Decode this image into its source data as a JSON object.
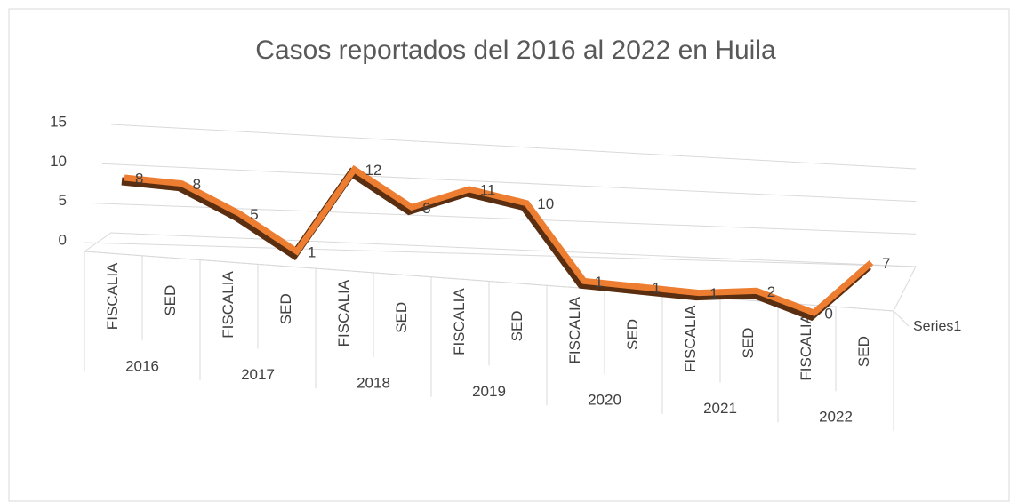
{
  "chart_data": {
    "type": "line3d",
    "title": "Casos reportados del 2016 al 2022 en Huila",
    "categories": [
      "FISCALIA",
      "SED",
      "FISCALIA",
      "SED",
      "FISCALIA",
      "SED",
      "FISCALIA",
      "SED",
      "FISCALIA",
      "SED",
      "FISCALIA",
      "SED",
      "FISCALIA",
      "SED"
    ],
    "groups": [
      "2016",
      "2017",
      "2018",
      "2019",
      "2020",
      "2021",
      "2022"
    ],
    "series": [
      {
        "name": "Series1",
        "color": "#ed7d31",
        "values": [
          8,
          8,
          5,
          1,
          12,
          8,
          11,
          10,
          1,
          1,
          1,
          2,
          0,
          7
        ]
      }
    ],
    "ylim": [
      0,
      15
    ],
    "yticks": [
      0,
      5,
      10,
      15
    ],
    "grid": true,
    "data_labels": true
  }
}
